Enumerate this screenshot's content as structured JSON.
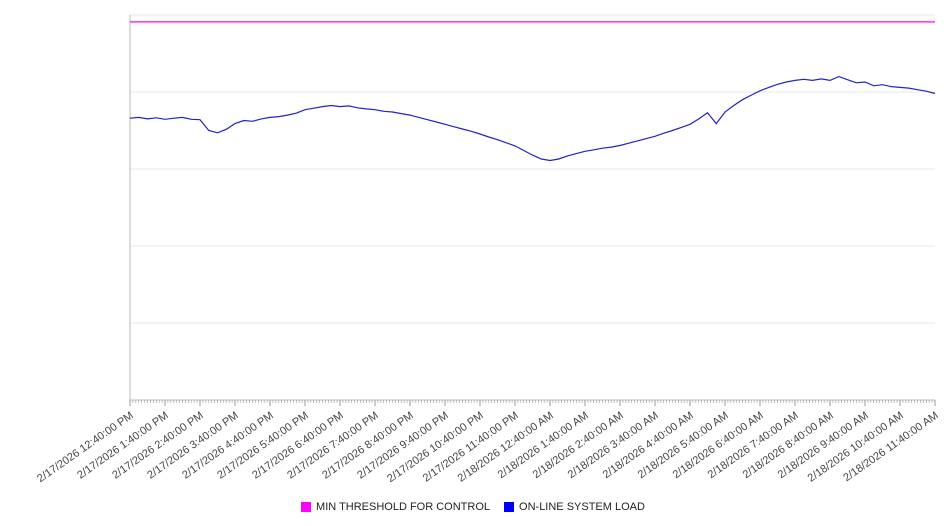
{
  "chart_data": {
    "type": "line",
    "title": "",
    "xlabel": "",
    "ylabel": "",
    "ylim": [
      0,
      100
    ],
    "y_axis_labels_visible": false,
    "grid": "horizontal",
    "gridline_values": [
      20,
      40,
      60,
      80,
      100
    ],
    "legend_position": "bottom-center",
    "x_labels": [
      "2/17/2026 12:40:00 PM",
      "2/17/2026 1:40:00 PM",
      "2/17/2026 2:40:00 PM",
      "2/17/2026 3:40:00 PM",
      "2/17/2026 4:40:00 PM",
      "2/17/2026 5:40:00 PM",
      "2/17/2026 6:40:00 PM",
      "2/17/2026 7:40:00 PM",
      "2/17/2026 8:40:00 PM",
      "2/17/2026 9:40:00 PM",
      "2/17/2026 10:40:00 PM",
      "2/17/2026 11:40:00 PM",
      "2/18/2026 12:40:00 AM",
      "2/18/2026 1:40:00 AM",
      "2/18/2026 2:40:00 AM",
      "2/18/2026 3:40:00 AM",
      "2/18/2026 4:40:00 AM",
      "2/18/2026 5:40:00 AM",
      "2/18/2026 6:40:00 AM",
      "2/18/2026 7:40:00 AM",
      "2/18/2026 8:40:00 AM",
      "2/18/2026 9:40:00 AM",
      "2/18/2026 10:40:00 AM",
      "2/18/2026 11:40:00 AM"
    ],
    "minor_ticks_per_label_interval": 12,
    "series": [
      {
        "name": "MIN THRESHOLD FOR CONTROL",
        "color": "#ff00ff",
        "legend_color": "#ff00ff",
        "values": [
          98.2,
          98.2
        ]
      },
      {
        "name": "ON-LINE SYSTEM LOAD",
        "color": "#2222c8",
        "legend_color": "#0000ff",
        "values": [
          73.2,
          73.4,
          73.0,
          73.3,
          72.9,
          73.2,
          73.4,
          72.9,
          72.8,
          70.0,
          69.4,
          70.3,
          71.8,
          72.6,
          72.4,
          73.0,
          73.4,
          73.6,
          74.0,
          74.5,
          75.4,
          75.8,
          76.2,
          76.5,
          76.2,
          76.4,
          75.9,
          75.6,
          75.4,
          75.0,
          74.8,
          74.4,
          74.0,
          73.4,
          72.8,
          72.2,
          71.6,
          71.0,
          70.4,
          69.8,
          69.1,
          68.3,
          67.6,
          66.8,
          66.0,
          64.8,
          63.6,
          62.6,
          62.2,
          62.6,
          63.4,
          64.0,
          64.6,
          65.0,
          65.4,
          65.7,
          66.1,
          66.7,
          67.3,
          67.9,
          68.5,
          69.3,
          70.0,
          70.8,
          71.6,
          73.0,
          74.6,
          71.8,
          74.8,
          76.5,
          78.0,
          79.2,
          80.3,
          81.2,
          82.0,
          82.6,
          83.0,
          83.3,
          83.0,
          83.4,
          83.0,
          84.0,
          83.2,
          82.4,
          82.6,
          81.6,
          81.9,
          81.4,
          81.2,
          81.0,
          80.6,
          80.2,
          79.6
        ]
      }
    ]
  },
  "colors": {
    "gridline": "#e8e8e8",
    "axis": "#bbbbbb",
    "tick": "#999999",
    "label_text": "#444444"
  }
}
